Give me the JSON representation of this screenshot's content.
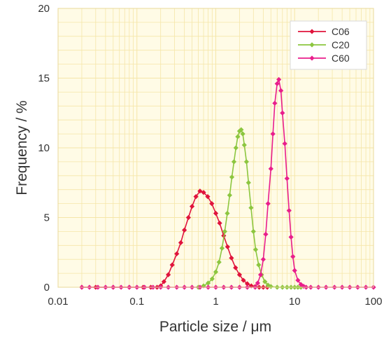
{
  "chart_data": {
    "type": "line",
    "xscale": "log",
    "xlim": [
      0.01,
      100
    ],
    "ylim": [
      0,
      20
    ],
    "xlabel": "Particle size / μm",
    "ylabel": "Frequency / %",
    "x_ticks": [
      "0.01",
      "0.1",
      "1",
      "10",
      "100"
    ],
    "y_ticks": [
      "0",
      "5",
      "10",
      "15",
      "20"
    ],
    "grid": true,
    "legend_position": "top-right",
    "background_color": "#fffbe6",
    "grid_color": "#f5e6a8",
    "series": [
      {
        "name": "C06",
        "color": "#e0143c",
        "x": [
          0.02,
          0.03,
          0.05,
          0.08,
          0.12,
          0.15,
          0.18,
          0.2,
          0.22,
          0.25,
          0.28,
          0.32,
          0.36,
          0.4,
          0.45,
          0.5,
          0.56,
          0.63,
          0.7,
          0.79,
          0.89,
          1.0,
          1.12,
          1.26,
          1.41,
          1.58,
          1.78,
          2.0,
          2.24,
          2.51,
          2.82,
          3.16,
          3.55,
          4.0,
          4.5
        ],
        "y": [
          0,
          0,
          0,
          0,
          0,
          0,
          0,
          0.1,
          0.4,
          0.9,
          1.6,
          2.4,
          3.2,
          4.1,
          5.0,
          5.8,
          6.5,
          6.9,
          6.8,
          6.5,
          6.0,
          5.3,
          4.6,
          3.7,
          2.9,
          2.1,
          1.4,
          0.9,
          0.5,
          0.25,
          0.1,
          0.05,
          0,
          0,
          0
        ]
      },
      {
        "name": "C20",
        "color": "#8cc63f",
        "x": [
          0.6,
          0.7,
          0.8,
          0.9,
          1.0,
          1.1,
          1.2,
          1.3,
          1.4,
          1.5,
          1.6,
          1.7,
          1.8,
          1.9,
          2.0,
          2.1,
          2.2,
          2.3,
          2.45,
          2.6,
          2.8,
          3.0,
          3.2,
          3.5,
          3.8,
          4.2,
          4.6,
          5.0,
          6.0,
          7.0,
          8.0,
          9.0,
          10.0,
          11.0,
          12.0
        ],
        "y": [
          0,
          0.1,
          0.3,
          0.6,
          1.1,
          1.8,
          2.8,
          4.0,
          5.3,
          6.6,
          7.9,
          9.0,
          10.0,
          10.8,
          11.2,
          11.3,
          11.0,
          10.2,
          9.0,
          7.5,
          5.7,
          4.0,
          2.7,
          1.6,
          0.9,
          0.4,
          0.15,
          0.05,
          0,
          0,
          0,
          0,
          0,
          0,
          0
        ]
      },
      {
        "name": "C60",
        "color": "#e91e8c",
        "x": [
          0.02,
          0.025,
          0.032,
          0.04,
          0.05,
          0.063,
          0.08,
          0.1,
          0.125,
          0.16,
          0.2,
          0.25,
          0.32,
          0.4,
          0.5,
          0.63,
          0.8,
          1.0,
          1.26,
          1.58,
          2.0,
          2.51,
          3.16,
          3.4,
          3.7,
          4.0,
          4.3,
          4.6,
          5.0,
          5.3,
          5.6,
          6.0,
          6.3,
          6.7,
          7.0,
          7.5,
          8.0,
          8.5,
          9.0,
          9.5,
          10.0,
          11.0,
          12.0,
          13.0,
          14.0,
          16.0,
          20.0,
          25.0,
          32.0,
          40.0,
          50.0,
          63.0,
          80.0,
          100.0
        ],
        "y": [
          0,
          0,
          0,
          0,
          0,
          0,
          0,
          0,
          0,
          0,
          0,
          0,
          0,
          0,
          0,
          0,
          0,
          0,
          0,
          0,
          0,
          0,
          0,
          0.3,
          0.9,
          2.0,
          3.8,
          6.0,
          8.5,
          11.0,
          13.2,
          14.6,
          14.9,
          14.1,
          12.5,
          10.3,
          7.8,
          5.5,
          3.6,
          2.2,
          1.2,
          0.5,
          0.2,
          0.07,
          0,
          0,
          0,
          0,
          0,
          0,
          0,
          0,
          0,
          0
        ]
      }
    ]
  }
}
